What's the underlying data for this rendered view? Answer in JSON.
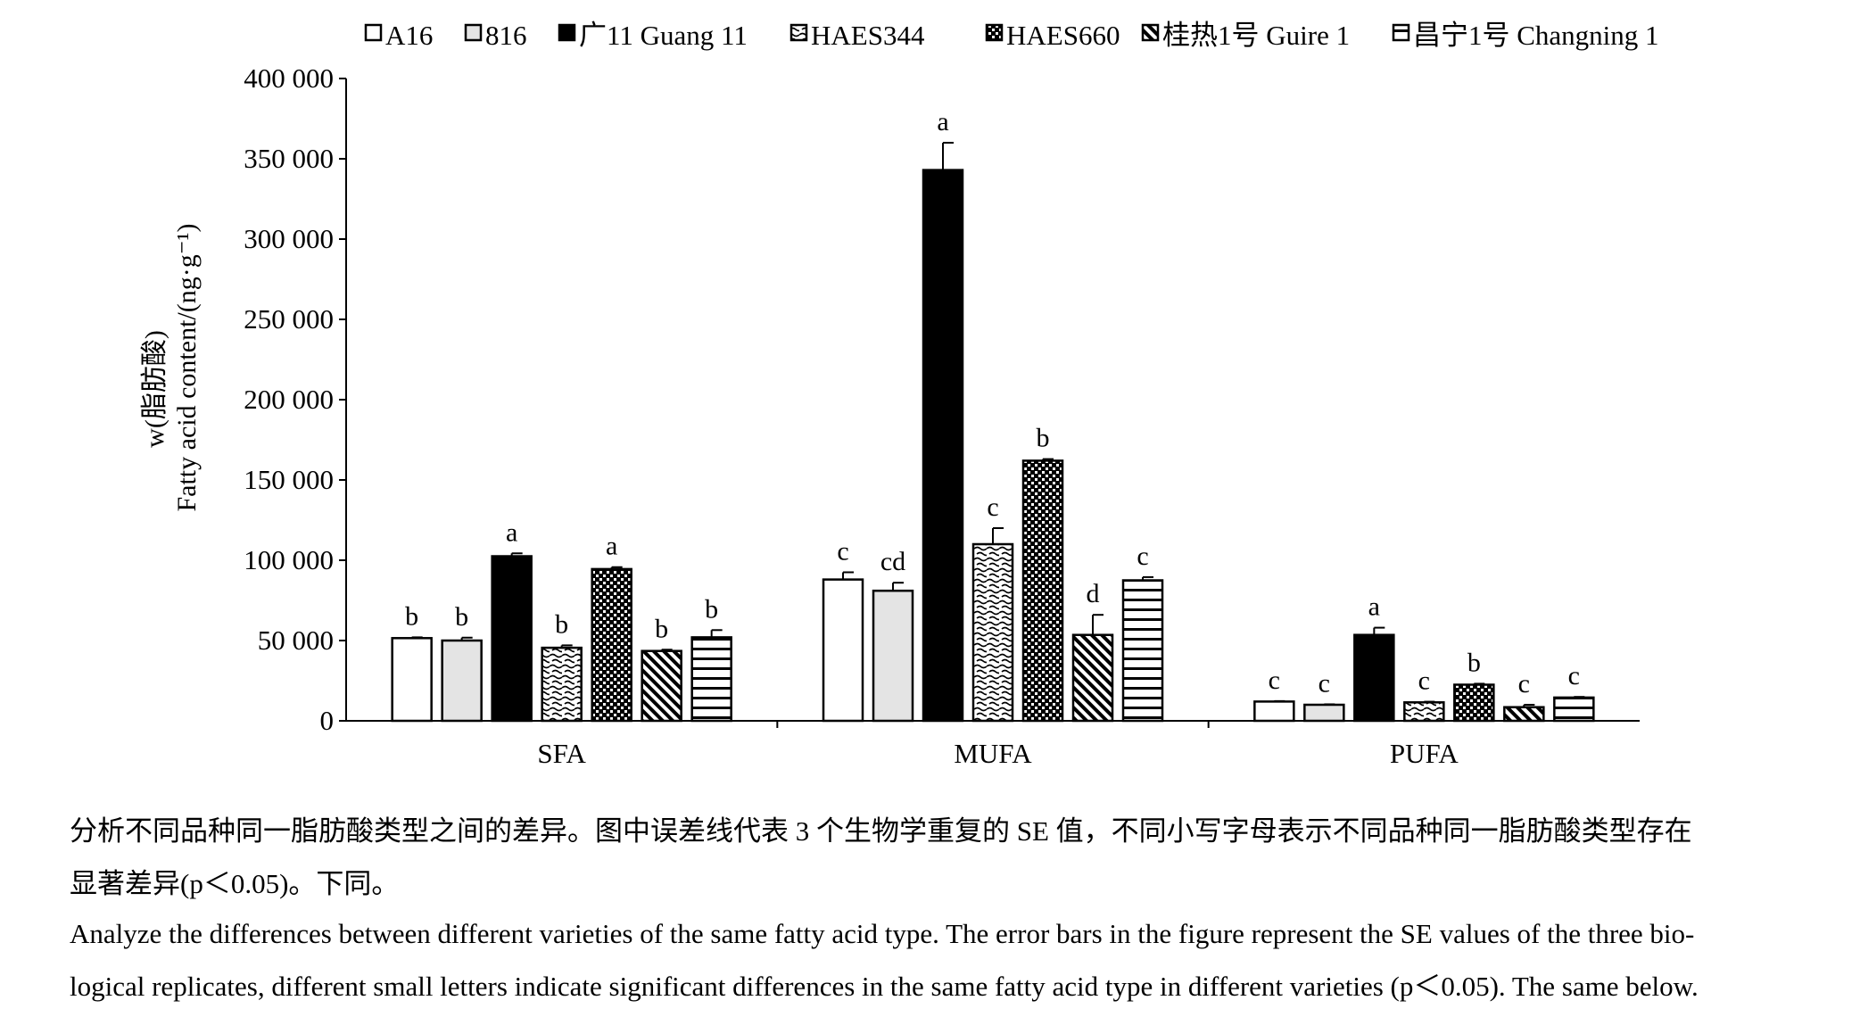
{
  "chart_data": {
    "type": "bar",
    "legend_position": "top",
    "ylabel_line1": "w(脂肪酸)",
    "ylabel_line2": "Fatty acid content/(ng·g⁻¹)",
    "ylim": [
      0,
      400000
    ],
    "yticks": [
      0,
      50000,
      100000,
      150000,
      200000,
      250000,
      300000,
      350000,
      400000
    ],
    "ytick_labels": [
      "0",
      "50 000",
      "100 000",
      "150 000",
      "200 000",
      "250 000",
      "300 000",
      "350 000",
      "400 000"
    ],
    "categories": [
      "SFA",
      "MUFA",
      "PUFA"
    ],
    "series": [
      {
        "name": "A16",
        "pattern": "white",
        "values": [
          51500,
          88000,
          12000
        ],
        "errors": [
          500,
          4500,
          300
        ],
        "letters": [
          "b",
          "c",
          "c"
        ]
      },
      {
        "name": "816",
        "pattern": "lightgray",
        "values": [
          50000,
          81000,
          10000
        ],
        "errors": [
          1800,
          5000,
          300
        ],
        "letters": [
          "b",
          "cd",
          "c"
        ]
      },
      {
        "name": "广11 Guang 11",
        "pattern": "black",
        "values": [
          102500,
          343000,
          53500
        ],
        "errors": [
          1800,
          17000,
          4500
        ],
        "letters": [
          "a",
          "a",
          "a"
        ]
      },
      {
        "name": "HAES344",
        "pattern": "wave",
        "values": [
          45500,
          110000,
          11500
        ],
        "errors": [
          1500,
          10000,
          400
        ],
        "letters": [
          "b",
          "c",
          "c"
        ]
      },
      {
        "name": "HAES660",
        "pattern": "checker",
        "values": [
          94500,
          162000,
          22500
        ],
        "errors": [
          1200,
          1000,
          600
        ],
        "letters": [
          "a",
          "b",
          "b"
        ]
      },
      {
        "name": "桂热1号 Guire 1",
        "pattern": "diagonal",
        "values": [
          43500,
          53500,
          8500
        ],
        "errors": [
          800,
          12500,
          1500
        ],
        "letters": [
          "b",
          "d",
          "c"
        ]
      },
      {
        "name": "昌宁1号 Changning 1",
        "pattern": "horizontal",
        "values": [
          52000,
          87500,
          14500
        ],
        "errors": [
          4500,
          2000,
          400
        ],
        "letters": [
          "b",
          "c",
          "c"
        ]
      }
    ]
  },
  "captions": {
    "zh_line1": "分析不同品种同一脂肪酸类型之间的差异。图中误差线代表 3 个生物学重复的 SE 值，不同小写字母表示不同品种同一脂肪酸类型存在",
    "zh_line2": "显著差异(p＜0.05)。下同。",
    "en_line1": "Analyze the differences between different varieties of the same fatty acid type. The error bars in the figure represent the SE values of the three bio-",
    "en_line2": "logical replicates, different small letters indicate significant differences in the same fatty acid type in different varieties (p＜0.05). The same below."
  }
}
